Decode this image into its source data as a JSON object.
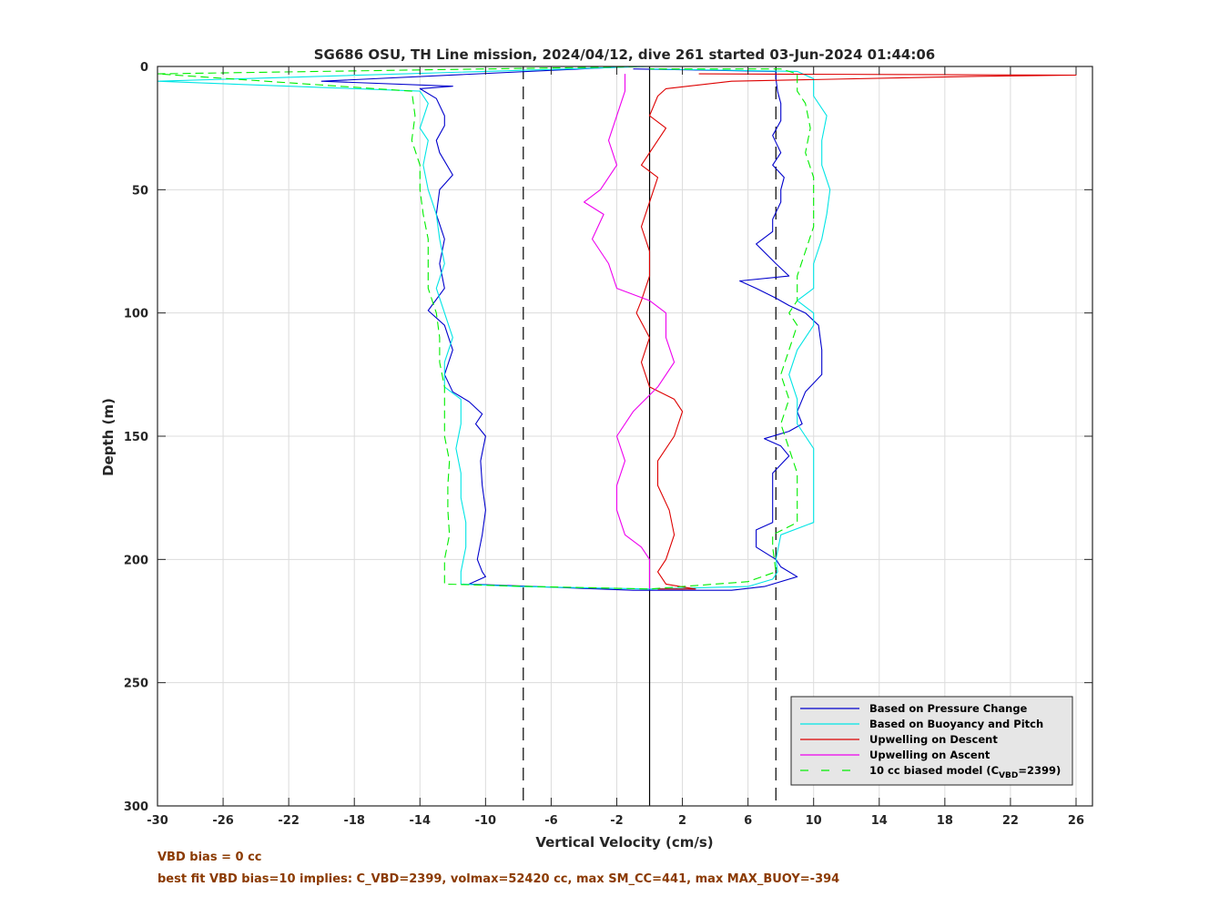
{
  "chart_data": {
    "type": "line",
    "title": "SG686 OSU, TH Line mission, 2024/04/12, dive 261 started 03-Jun-2024 01:44:06",
    "xlabel": "Vertical Velocity (cm/s)",
    "ylabel": "Depth (m)",
    "xlim": [
      -30,
      27
    ],
    "ylim": [
      0,
      300
    ],
    "y_reversed": true,
    "xticks": [
      -30,
      -26,
      -22,
      -18,
      -14,
      -10,
      -6,
      -2,
      2,
      6,
      10,
      14,
      18,
      22,
      26
    ],
    "yticks": [
      0,
      50,
      100,
      150,
      200,
      250,
      300
    ],
    "grid": true,
    "legend_position": "bottom-right",
    "reference_lines": [
      {
        "x": -7.7,
        "style": "dashed",
        "color": "#000000"
      },
      {
        "x": 0,
        "style": "solid",
        "color": "#000000"
      },
      {
        "x": 7.7,
        "style": "dashed",
        "color": "#000000"
      }
    ],
    "series": [
      {
        "name": "Based on Pressure Change",
        "color": "#0000cc",
        "style": "solid",
        "points": [
          [
            -1,
            0
          ],
          [
            -20,
            6
          ],
          [
            -12,
            8
          ],
          [
            -14,
            9
          ],
          [
            -13,
            13
          ],
          [
            -12.5,
            20
          ],
          [
            -12.5,
            24
          ],
          [
            -13,
            30
          ],
          [
            -12.8,
            35
          ],
          [
            -12,
            44
          ],
          [
            -12.8,
            50
          ],
          [
            -13,
            60
          ],
          [
            -12.5,
            70
          ],
          [
            -12.8,
            80
          ],
          [
            -12.5,
            90
          ],
          [
            -13.5,
            99
          ],
          [
            -12.5,
            105
          ],
          [
            -12,
            115
          ],
          [
            -12.5,
            125
          ],
          [
            -12,
            132
          ],
          [
            -11,
            136
          ],
          [
            -10.2,
            141
          ],
          [
            -10.6,
            145
          ],
          [
            -10,
            150
          ],
          [
            -10.3,
            160
          ],
          [
            -10.2,
            170
          ],
          [
            -10,
            180
          ],
          [
            -10.2,
            190
          ],
          [
            -10.5,
            200
          ],
          [
            -10.2,
            205
          ],
          [
            -10,
            207
          ],
          [
            -11,
            210
          ],
          [
            -7,
            211
          ],
          [
            -1,
            212.5
          ],
          [
            5,
            212.5
          ],
          [
            7,
            211
          ],
          [
            9,
            207
          ],
          [
            8,
            203
          ],
          [
            7.7,
            200
          ],
          [
            6.5,
            195
          ],
          [
            6.5,
            188
          ],
          [
            7.5,
            185
          ],
          [
            7.5,
            175
          ],
          [
            7.5,
            165
          ],
          [
            8.5,
            158
          ],
          [
            8,
            154
          ],
          [
            7,
            151
          ],
          [
            8.5,
            148
          ],
          [
            9.3,
            145
          ],
          [
            9,
            140
          ],
          [
            9.5,
            132
          ],
          [
            10.5,
            125
          ],
          [
            10.5,
            115
          ],
          [
            10.3,
            105
          ],
          [
            9.5,
            100
          ],
          [
            8.5,
            97
          ],
          [
            7.7,
            94
          ],
          [
            6.5,
            90
          ],
          [
            5.5,
            87
          ],
          [
            8.5,
            85
          ],
          [
            7.7,
            80
          ],
          [
            6.5,
            72
          ],
          [
            7.5,
            67
          ],
          [
            7.5,
            62
          ],
          [
            8,
            55
          ],
          [
            8,
            50
          ],
          [
            8.2,
            45
          ],
          [
            7.5,
            40
          ],
          [
            8,
            35
          ],
          [
            7.5,
            28
          ],
          [
            8,
            22
          ],
          [
            8,
            15
          ],
          [
            7.8,
            10
          ],
          [
            7.7,
            5
          ],
          [
            7.7,
            2
          ],
          [
            -1,
            1
          ]
        ]
      },
      {
        "name": "Based on Buoyancy and Pitch",
        "color": "#00e5e5",
        "style": "solid",
        "points": [
          [
            0,
            0
          ],
          [
            -30,
            6
          ],
          [
            -14,
            10
          ],
          [
            -13.5,
            15
          ],
          [
            -14,
            25
          ],
          [
            -13.5,
            30
          ],
          [
            -13.8,
            40
          ],
          [
            -13.5,
            50
          ],
          [
            -13,
            60
          ],
          [
            -12.8,
            70
          ],
          [
            -12.5,
            80
          ],
          [
            -13,
            90
          ],
          [
            -12.5,
            100
          ],
          [
            -12,
            110
          ],
          [
            -12.5,
            120
          ],
          [
            -12.5,
            130
          ],
          [
            -11.5,
            135
          ],
          [
            -11.5,
            145
          ],
          [
            -11.8,
            155
          ],
          [
            -11.5,
            165
          ],
          [
            -11.5,
            175
          ],
          [
            -11.2,
            185
          ],
          [
            -11.2,
            195
          ],
          [
            -11.5,
            205
          ],
          [
            -11.5,
            210
          ],
          [
            -8,
            211
          ],
          [
            0,
            212
          ],
          [
            6,
            211
          ],
          [
            7.5,
            208
          ],
          [
            7.8,
            205
          ],
          [
            7.7,
            200
          ],
          [
            8,
            190
          ],
          [
            10,
            185
          ],
          [
            10,
            175
          ],
          [
            10,
            165
          ],
          [
            10,
            155
          ],
          [
            9.5,
            150
          ],
          [
            9,
            145
          ],
          [
            9,
            135
          ],
          [
            8.5,
            125
          ],
          [
            9,
            115
          ],
          [
            10,
            105
          ],
          [
            10,
            100
          ],
          [
            9,
            95
          ],
          [
            10,
            90
          ],
          [
            10,
            80
          ],
          [
            10.5,
            70
          ],
          [
            10.8,
            60
          ],
          [
            11,
            50
          ],
          [
            10.5,
            40
          ],
          [
            10.5,
            30
          ],
          [
            10.8,
            20
          ],
          [
            10,
            12
          ],
          [
            10,
            5
          ],
          [
            9,
            2
          ],
          [
            0,
            1
          ]
        ]
      },
      {
        "name": "Upwelling on Descent",
        "color": "#dd0000",
        "style": "solid",
        "points": [
          [
            3,
            3
          ],
          [
            26,
            3.5
          ],
          [
            20,
            4
          ],
          [
            5,
            6
          ],
          [
            1,
            9
          ],
          [
            0.5,
            12
          ],
          [
            0,
            20
          ],
          [
            1,
            25
          ],
          [
            0.5,
            30
          ],
          [
            -0.5,
            40
          ],
          [
            0.5,
            45
          ],
          [
            0,
            55
          ],
          [
            -0.5,
            65
          ],
          [
            0,
            75
          ],
          [
            0,
            85
          ],
          [
            -0.5,
            95
          ],
          [
            -0.8,
            100
          ],
          [
            0,
            110
          ],
          [
            -0.5,
            120
          ],
          [
            0,
            130
          ],
          [
            1.5,
            135
          ],
          [
            2,
            140
          ],
          [
            1.5,
            150
          ],
          [
            0.5,
            160
          ],
          [
            0.5,
            170
          ],
          [
            1.2,
            180
          ],
          [
            1.5,
            190
          ],
          [
            1,
            200
          ],
          [
            0.5,
            205
          ],
          [
            1,
            210
          ],
          [
            2.8,
            212
          ],
          [
            0.5,
            212
          ]
        ]
      },
      {
        "name": "Upwelling on Ascent",
        "color": "#ee00ee",
        "style": "solid",
        "points": [
          [
            -1.5,
            3
          ],
          [
            -1.5,
            10
          ],
          [
            -2,
            20
          ],
          [
            -2.5,
            30
          ],
          [
            -2,
            40
          ],
          [
            -3,
            50
          ],
          [
            -4,
            55
          ],
          [
            -2.8,
            60
          ],
          [
            -3.5,
            70
          ],
          [
            -2.5,
            80
          ],
          [
            -2,
            90
          ],
          [
            0,
            95
          ],
          [
            1,
            100
          ],
          [
            1,
            110
          ],
          [
            1.5,
            120
          ],
          [
            0.5,
            130
          ],
          [
            -1,
            140
          ],
          [
            -2,
            150
          ],
          [
            -1.5,
            160
          ],
          [
            -2,
            170
          ],
          [
            -2,
            180
          ],
          [
            -1.5,
            190
          ],
          [
            -0.5,
            195
          ],
          [
            0,
            200
          ],
          [
            0,
            212
          ]
        ]
      },
      {
        "name": "10 cc biased model (C_VBD=2399)",
        "color": "#00ee00",
        "style": "dashed",
        "points": [
          [
            0,
            0
          ],
          [
            -30,
            3
          ],
          [
            -14.5,
            10
          ],
          [
            -14.3,
            20
          ],
          [
            -14.5,
            30
          ],
          [
            -14,
            40
          ],
          [
            -14,
            50
          ],
          [
            -13.8,
            60
          ],
          [
            -13.5,
            70
          ],
          [
            -13.5,
            80
          ],
          [
            -13.5,
            90
          ],
          [
            -13,
            100
          ],
          [
            -12.8,
            110
          ],
          [
            -12.8,
            120
          ],
          [
            -12.5,
            130
          ],
          [
            -12.5,
            140
          ],
          [
            -12.5,
            150
          ],
          [
            -12.2,
            160
          ],
          [
            -12.3,
            170
          ],
          [
            -12.3,
            180
          ],
          [
            -12.2,
            190
          ],
          [
            -12.5,
            200
          ],
          [
            -12.5,
            210
          ],
          [
            -7,
            211
          ],
          [
            0,
            212
          ],
          [
            6,
            209
          ],
          [
            7.7,
            205
          ],
          [
            7.5,
            195
          ],
          [
            7.5,
            190
          ],
          [
            9,
            185
          ],
          [
            9,
            175
          ],
          [
            9,
            165
          ],
          [
            8.5,
            155
          ],
          [
            8,
            145
          ],
          [
            8.5,
            135
          ],
          [
            8,
            125
          ],
          [
            8.5,
            115
          ],
          [
            9,
            105
          ],
          [
            8.5,
            100
          ],
          [
            9,
            95
          ],
          [
            9,
            85
          ],
          [
            9.5,
            75
          ],
          [
            10,
            65
          ],
          [
            10,
            55
          ],
          [
            10,
            45
          ],
          [
            9.5,
            35
          ],
          [
            9.8,
            25
          ],
          [
            9.5,
            15
          ],
          [
            9,
            10
          ],
          [
            9,
            3
          ],
          [
            8,
            1
          ],
          [
            0,
            1
          ]
        ]
      }
    ],
    "legend_items": [
      {
        "text": "Based on Pressure Change",
        "color": "#0000cc",
        "style": "solid"
      },
      {
        "text": "Based on Buoyancy and Pitch",
        "color": "#00e5e5",
        "style": "solid"
      },
      {
        "text": "Upwelling on Descent",
        "color": "#dd0000",
        "style": "solid"
      },
      {
        "text": "Upwelling on Ascent",
        "color": "#ee00ee",
        "style": "solid"
      },
      {
        "text": "10 cc biased model (C",
        "sub": "VBD",
        "tail": "=2399)",
        "color": "#00ee00",
        "style": "dashed"
      }
    ]
  },
  "notes": {
    "line1": "VBD bias = 0 cc",
    "line2": "best fit VBD bias=10 implies: C_VBD=2399, volmax=52420 cc, max SM_CC=441, max MAX_BUOY=-394"
  }
}
